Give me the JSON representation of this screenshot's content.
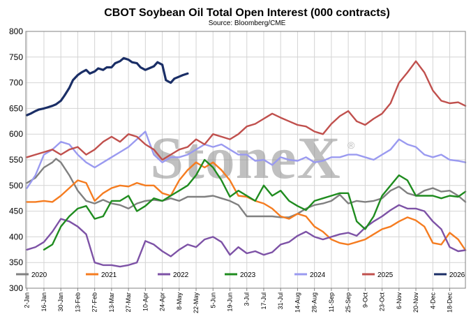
{
  "chart_data": {
    "type": "line",
    "title": "CBOT Soybean Oil Total Open Interest (000 contracts)",
    "subtitle": "Source: Bloomberg/CME",
    "watermark": "StoneX",
    "ylim": [
      300,
      800
    ],
    "yticks": [
      300,
      350,
      400,
      450,
      500,
      550,
      600,
      650,
      700,
      750,
      800
    ],
    "xlim": [
      0,
      364
    ],
    "xticks": [
      {
        "day": 1,
        "label": "2-Jan"
      },
      {
        "day": 15,
        "label": "16-Jan"
      },
      {
        "day": 29,
        "label": "30-Jan"
      },
      {
        "day": 43,
        "label": "13-Feb"
      },
      {
        "day": 57,
        "label": "27-Feb"
      },
      {
        "day": 71,
        "label": "13-Mar"
      },
      {
        "day": 85,
        "label": "27-Mar"
      },
      {
        "day": 99,
        "label": "10-Apr"
      },
      {
        "day": 113,
        "label": "24-Apr"
      },
      {
        "day": 127,
        "label": "8-May"
      },
      {
        "day": 141,
        "label": "22-May"
      },
      {
        "day": 155,
        "label": "5-Jun"
      },
      {
        "day": 169,
        "label": "19-Jun"
      },
      {
        "day": 183,
        "label": "3-Jul"
      },
      {
        "day": 197,
        "label": "17-Jul"
      },
      {
        "day": 211,
        "label": "31-Jul"
      },
      {
        "day": 225,
        "label": "14-Aug"
      },
      {
        "day": 239,
        "label": "28-Aug"
      },
      {
        "day": 253,
        "label": "11-Sep"
      },
      {
        "day": 267,
        "label": "25-Sep"
      },
      {
        "day": 281,
        "label": "9-Oct"
      },
      {
        "day": 295,
        "label": "23-Oct"
      },
      {
        "day": 309,
        "label": "6-Nov"
      },
      {
        "day": 323,
        "label": "20-Nov"
      },
      {
        "day": 337,
        "label": "4-Dec"
      },
      {
        "day": 351,
        "label": "18-Dec"
      }
    ],
    "legend_position": "bottom",
    "grid": true,
    "series": [
      {
        "name": "2020",
        "color": "#808080",
        "width": 2.4,
        "x": [
          1,
          8,
          15,
          22,
          25,
          29,
          36,
          43,
          50,
          57,
          64,
          71,
          78,
          85,
          92,
          99,
          106,
          113,
          120,
          127,
          134,
          141,
          148,
          155,
          162,
          169,
          176,
          183,
          190,
          197,
          204,
          211,
          218,
          225,
          232,
          239,
          246,
          253,
          260,
          267,
          274,
          281,
          288,
          295,
          302,
          309,
          316,
          323,
          330,
          337,
          344,
          351,
          358,
          364
        ],
        "y": [
          505,
          515,
          535,
          545,
          552,
          545,
          520,
          490,
          470,
          465,
          472,
          465,
          462,
          455,
          465,
          470,
          472,
          470,
          475,
          470,
          478,
          478,
          478,
          480,
          475,
          470,
          462,
          440,
          440,
          440,
          440,
          438,
          438,
          445,
          455,
          462,
          465,
          470,
          482,
          465,
          470,
          468,
          470,
          475,
          490,
          498,
          485,
          480,
          490,
          495,
          488,
          490,
          480,
          468
        ]
      },
      {
        "name": "2021",
        "color": "#f57c20",
        "width": 2.4,
        "x": [
          1,
          8,
          15,
          22,
          29,
          36,
          43,
          50,
          57,
          64,
          71,
          78,
          85,
          92,
          99,
          106,
          113,
          120,
          127,
          134,
          141,
          148,
          155,
          162,
          169,
          176,
          183,
          190,
          197,
          204,
          211,
          218,
          225,
          232,
          239,
          246,
          253,
          260,
          267,
          274,
          281,
          288,
          295,
          302,
          309,
          316,
          323,
          330,
          337,
          344,
          351,
          358,
          364
        ],
        "y": [
          468,
          468,
          470,
          468,
          480,
          495,
          510,
          505,
          470,
          485,
          495,
          500,
          498,
          505,
          500,
          500,
          485,
          480,
          510,
          530,
          545,
          535,
          545,
          530,
          510,
          480,
          478,
          470,
          465,
          455,
          440,
          435,
          445,
          440,
          420,
          410,
          395,
          388,
          385,
          390,
          395,
          405,
          415,
          420,
          430,
          438,
          432,
          420,
          388,
          385,
          408,
          395,
          374
        ]
      },
      {
        "name": "2022",
        "color": "#7d52a6",
        "width": 2.4,
        "x": [
          1,
          8,
          15,
          22,
          29,
          36,
          43,
          50,
          57,
          64,
          71,
          78,
          85,
          92,
          99,
          106,
          113,
          120,
          127,
          134,
          141,
          148,
          155,
          162,
          169,
          176,
          183,
          190,
          197,
          204,
          211,
          218,
          225,
          232,
          239,
          246,
          253,
          260,
          267,
          274,
          281,
          288,
          295,
          302,
          309,
          316,
          323,
          330,
          337,
          344,
          351,
          358,
          364
        ],
        "y": [
          375,
          380,
          390,
          410,
          435,
          430,
          420,
          405,
          350,
          345,
          345,
          342,
          345,
          350,
          392,
          385,
          372,
          362,
          375,
          385,
          380,
          395,
          400,
          390,
          365,
          380,
          368,
          372,
          365,
          370,
          385,
          390,
          402,
          410,
          400,
          395,
          400,
          405,
          408,
          402,
          418,
          430,
          440,
          452,
          462,
          455,
          455,
          450,
          430,
          415,
          380,
          372,
          374
        ]
      },
      {
        "name": "2023",
        "color": "#1f8c1f",
        "width": 2.4,
        "x": [
          15,
          22,
          29,
          36,
          43,
          50,
          57,
          64,
          71,
          78,
          85,
          92,
          99,
          106,
          113,
          120,
          127,
          134,
          141,
          148,
          155,
          162,
          169,
          176,
          183,
          190,
          197,
          204,
          211,
          218,
          225,
          232,
          239,
          246,
          253,
          260,
          267,
          274,
          281,
          288,
          295,
          302,
          309,
          316,
          323,
          330,
          337,
          344,
          351,
          358,
          364
        ],
        "y": [
          375,
          385,
          420,
          440,
          455,
          460,
          435,
          440,
          470,
          470,
          480,
          450,
          460,
          475,
          470,
          480,
          490,
          500,
          520,
          550,
          535,
          510,
          478,
          490,
          480,
          470,
          500,
          480,
          490,
          470,
          460,
          452,
          470,
          475,
          480,
          485,
          485,
          430,
          415,
          440,
          480,
          500,
          520,
          510,
          480,
          480,
          480,
          475,
          480,
          478,
          488
        ]
      },
      {
        "name": "2024",
        "color": "#9a9af0",
        "width": 2.4,
        "x": [
          1,
          8,
          15,
          22,
          29,
          36,
          43,
          50,
          57,
          64,
          71,
          78,
          85,
          92,
          99,
          106,
          113,
          120,
          127,
          134,
          141,
          148,
          155,
          162,
          169,
          176,
          183,
          190,
          197,
          204,
          211,
          218,
          225,
          232,
          239,
          246,
          253,
          260,
          267,
          274,
          281,
          288,
          295,
          302,
          309,
          316,
          323,
          330,
          337,
          344,
          351,
          358,
          364
        ],
        "y": [
          495,
          520,
          560,
          570,
          585,
          580,
          560,
          545,
          535,
          545,
          555,
          565,
          575,
          590,
          605,
          560,
          545,
          555,
          555,
          560,
          570,
          580,
          575,
          580,
          570,
          560,
          560,
          548,
          550,
          540,
          555,
          550,
          548,
          555,
          545,
          548,
          555,
          555,
          560,
          560,
          555,
          550,
          560,
          570,
          590,
          580,
          575,
          560,
          555,
          560,
          550,
          548,
          545
        ]
      },
      {
        "name": "2025",
        "color": "#c0504d",
        "width": 2.4,
        "x": [
          1,
          8,
          15,
          22,
          29,
          36,
          43,
          50,
          57,
          64,
          71,
          78,
          85,
          92,
          99,
          106,
          113,
          120,
          127,
          134,
          141,
          148,
          155,
          162,
          169,
          176,
          183,
          190,
          197,
          204,
          211,
          218,
          225,
          232,
          239,
          246,
          253,
          260,
          267,
          274,
          281,
          288,
          295,
          302,
          309,
          316,
          323,
          330,
          337,
          344,
          351,
          358,
          364
        ],
        "y": [
          555,
          560,
          565,
          570,
          560,
          570,
          575,
          560,
          570,
          585,
          595,
          585,
          600,
          595,
          580,
          570,
          550,
          560,
          570,
          575,
          590,
          580,
          600,
          595,
          590,
          600,
          615,
          620,
          630,
          640,
          632,
          625,
          618,
          615,
          605,
          600,
          620,
          635,
          645,
          625,
          618,
          630,
          640,
          660,
          700,
          720,
          742,
          720,
          685,
          665,
          660,
          662,
          655
        ]
      },
      {
        "name": "2026",
        "color": "#1a2e66",
        "width": 3.2,
        "x": [
          1,
          4,
          8,
          11,
          15,
          18,
          22,
          25,
          29,
          32,
          36,
          39,
          43,
          46,
          50,
          53,
          57,
          60,
          64,
          67,
          71,
          74,
          78,
          81,
          85,
          88,
          92,
          95,
          99,
          102,
          106,
          109,
          113,
          116,
          120,
          123,
          127,
          130,
          134
        ],
        "y": [
          637,
          640,
          645,
          648,
          650,
          652,
          655,
          658,
          665,
          675,
          690,
          705,
          715,
          720,
          725,
          718,
          722,
          728,
          725,
          730,
          730,
          738,
          742,
          748,
          745,
          740,
          738,
          730,
          725,
          728,
          732,
          740,
          735,
          705,
          700,
          708,
          712,
          715,
          718
        ]
      }
    ]
  }
}
